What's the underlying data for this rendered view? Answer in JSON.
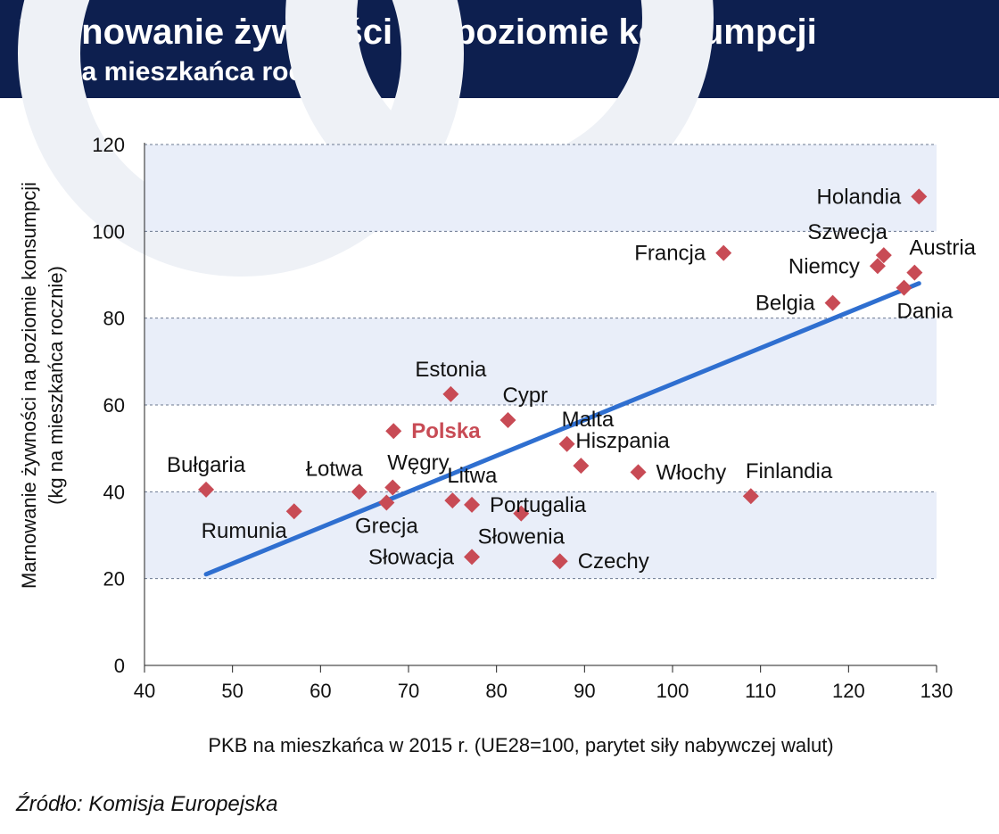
{
  "header": {
    "title": "Marnowanie żywności na poziomie konsumpcji",
    "subtitle": "(kg na mieszkańca rocznie)"
  },
  "source": "Źródło: Komisja Europejska",
  "colors": {
    "header_bg": "#0d1f4f",
    "band": "#e9eef9",
    "point": "#c84b55",
    "highlight_label": "#c84b55",
    "trend": "#2f6fd0",
    "watermark": "#eef1f6"
  },
  "chart_data": {
    "type": "scatter",
    "xlabel": "PKB na mieszkańca w 2015 r. (UE28=100, parytet siły nabywczej walut)",
    "ylabel_lines": [
      "Marnowanie żywności na poziomie konsumpcji",
      "(kg na mieszkańca rocznie)"
    ],
    "xlim": [
      40,
      130
    ],
    "ylim": [
      0,
      120
    ],
    "x_ticks": [
      "40",
      "50",
      "60",
      "70",
      "80",
      "90",
      "100",
      "110",
      "120",
      "130"
    ],
    "y_ticks": [
      "0",
      "20",
      "40",
      "60",
      "80",
      "100",
      "120"
    ],
    "grid": "dashed horizontal",
    "points": [
      {
        "label": "Holandia",
        "x": 128,
        "y": 108,
        "label_pos": "left"
      },
      {
        "label": "Szwecja",
        "x": 124,
        "y": 94.5,
        "label_pos": "above-left"
      },
      {
        "label": "Austria",
        "x": 127.5,
        "y": 90.5,
        "label_pos": "above-right"
      },
      {
        "label": "Niemcy",
        "x": 123.3,
        "y": 92,
        "label_pos": "left"
      },
      {
        "label": "Francja",
        "x": 105.8,
        "y": 95,
        "label_pos": "left"
      },
      {
        "label": "Belgia",
        "x": 118.2,
        "y": 83.5,
        "label_pos": "left"
      },
      {
        "label": "Dania",
        "x": 126.3,
        "y": 87,
        "label_pos": "below-right"
      },
      {
        "label": "Estonia",
        "x": 74.8,
        "y": 62.5,
        "label_pos": "above"
      },
      {
        "label": "Cypr",
        "x": 81.3,
        "y": 56.5,
        "label_pos": "above-right"
      },
      {
        "label": "Polska",
        "x": 68.3,
        "y": 54,
        "label_pos": "right",
        "highlight": true
      },
      {
        "label": "Malta",
        "x": 88,
        "y": 51,
        "label_pos": "above-right"
      },
      {
        "label": "Hiszpania",
        "x": 89.6,
        "y": 46,
        "label_pos": "above-right"
      },
      {
        "label": "Włochy",
        "x": 96.1,
        "y": 44.5,
        "label_pos": "right"
      },
      {
        "label": "Finlandia",
        "x": 108.9,
        "y": 39,
        "label_pos": "above-right"
      },
      {
        "label": "Bułgaria",
        "x": 47,
        "y": 40.5,
        "label_pos": "above"
      },
      {
        "label": "Łotwa",
        "x": 64.4,
        "y": 40,
        "label_pos": "above-left"
      },
      {
        "label": "Węgry",
        "x": 68.2,
        "y": 41,
        "label_pos": "above-right"
      },
      {
        "label": "Litwa",
        "x": 75,
        "y": 38,
        "label_pos": "above-right"
      },
      {
        "label": "Grecja",
        "x": 67.5,
        "y": 37.5,
        "label_pos": "below"
      },
      {
        "label": "Portugalia",
        "x": 77.2,
        "y": 37,
        "label_pos": "right"
      },
      {
        "label": "Rumunia",
        "x": 57,
        "y": 35.5,
        "label_pos": "below-left"
      },
      {
        "label": "Słowenia",
        "x": 82.8,
        "y": 35,
        "label_pos": "below"
      },
      {
        "label": "Słowacja",
        "x": 77.2,
        "y": 25,
        "label_pos": "left"
      },
      {
        "label": "Czechy",
        "x": 87.2,
        "y": 24,
        "label_pos": "right"
      }
    ],
    "trendline": {
      "x": [
        47,
        128
      ],
      "y": [
        21,
        88
      ]
    }
  }
}
